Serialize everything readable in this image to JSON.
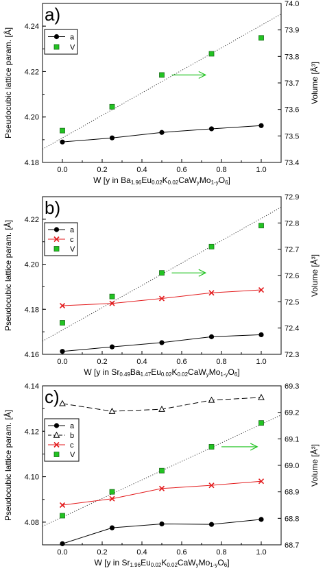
{
  "chart_data": [
    {
      "type": "scatter",
      "panel_label": "a)",
      "xlabel": "W [y in Ba",
      "xlabel_parts": [
        {
          "t": "W [y in Ba",
          "s": 0
        },
        {
          "t": "1.96",
          "s": 1
        },
        {
          "t": "Eu",
          "s": 0
        },
        {
          "t": "0.02",
          "s": 1
        },
        {
          "t": "K",
          "s": 0
        },
        {
          "t": "0.02",
          "s": 1
        },
        {
          "t": "CaW",
          "s": 0
        },
        {
          "t": "y",
          "s": 1
        },
        {
          "t": "Mo",
          "s": 0
        },
        {
          "t": "1-y",
          "s": 1
        },
        {
          "t": "O",
          "s": 0
        },
        {
          "t": "6",
          "s": 1
        },
        {
          "t": "]",
          "s": 0
        }
      ],
      "ylabel": "Pseudocubic lattice param. [Å]",
      "y2label": "Volume [Å³]",
      "xlim": [
        -0.1,
        1.1
      ],
      "xticks": [
        "0.0",
        "0.2",
        "0.4",
        "0.6",
        "0.8",
        "1.0"
      ],
      "ylim": [
        4.18,
        4.25
      ],
      "yticks": [
        "4.18",
        "4.20",
        "4.22",
        "4.24"
      ],
      "y2lim": [
        73.4,
        74.0
      ],
      "y2ticks": [
        "73.4",
        "73.5",
        "73.6",
        "73.7",
        "73.8",
        "73.9",
        "74.0"
      ],
      "legend_position": "top-left",
      "series": [
        {
          "name": "a",
          "marker": "circle",
          "line": "solid",
          "color": "#000000",
          "axis": "left",
          "x": [
            0,
            0.25,
            0.5,
            0.75,
            1.0
          ],
          "y": [
            4.189,
            4.1908,
            4.1932,
            4.1948,
            4.1962
          ]
        },
        {
          "name": "V",
          "marker": "square",
          "line": "none",
          "color": "#22c322",
          "axis": "right",
          "x": [
            0,
            0.25,
            0.5,
            0.75,
            1.0
          ],
          "y": [
            73.52,
            73.61,
            73.73,
            73.81,
            73.87
          ]
        }
      ],
      "fit_line": {
        "axis": "right",
        "x": [
          -0.1,
          1.1
        ],
        "y": [
          73.45,
          73.96
        ]
      },
      "arrow": {
        "x": [
          0.55,
          0.72
        ],
        "y": 73.73,
        "axis": "right",
        "color": "#22c322"
      }
    },
    {
      "type": "scatter",
      "panel_label": "b)",
      "xlabel": "W [y in Sr",
      "xlabel_parts": [
        {
          "t": "W [y in Sr",
          "s": 0
        },
        {
          "t": "0.49",
          "s": 1
        },
        {
          "t": "Ba",
          "s": 0
        },
        {
          "t": "1.47",
          "s": 1
        },
        {
          "t": "Eu",
          "s": 0
        },
        {
          "t": "0.02",
          "s": 1
        },
        {
          "t": "K",
          "s": 0
        },
        {
          "t": "0.02",
          "s": 1
        },
        {
          "t": "CaW",
          "s": 0
        },
        {
          "t": "y",
          "s": 1
        },
        {
          "t": "Mo",
          "s": 0
        },
        {
          "t": "1-y",
          "s": 1
        },
        {
          "t": "O",
          "s": 0
        },
        {
          "t": "6",
          "s": 1
        },
        {
          "t": "]",
          "s": 0
        }
      ],
      "ylabel": "Pseudocubic lattice param. [Å]",
      "y2label": "Volume [Å³]",
      "xlim": [
        -0.1,
        1.1
      ],
      "xticks": [
        "0.0",
        "0.2",
        "0.4",
        "0.6",
        "0.8",
        "1.0"
      ],
      "ylim": [
        4.16,
        4.23
      ],
      "yticks": [
        "4.16",
        "4.18",
        "4.20",
        "4.22"
      ],
      "y2lim": [
        72.3,
        72.9
      ],
      "y2ticks": [
        "72.3",
        "72.4",
        "72.5",
        "72.6",
        "72.7",
        "72.8",
        "72.9"
      ],
      "legend_position": "top-left",
      "series": [
        {
          "name": "a",
          "marker": "circle",
          "line": "solid",
          "color": "#000000",
          "axis": "left",
          "x": [
            0,
            0.25,
            0.5,
            0.75,
            1.0
          ],
          "y": [
            4.1613,
            4.1633,
            4.1652,
            4.1678,
            4.1687
          ]
        },
        {
          "name": "c",
          "marker": "cross",
          "line": "solid",
          "color": "#e31a1c",
          "axis": "left",
          "x": [
            0,
            0.25,
            0.5,
            0.75,
            1.0
          ],
          "y": [
            4.1816,
            4.1826,
            4.1848,
            4.1873,
            4.1886
          ]
        },
        {
          "name": "V",
          "marker": "square",
          "line": "none",
          "color": "#22c322",
          "axis": "right",
          "x": [
            0,
            0.25,
            0.5,
            0.75,
            1.0
          ],
          "y": [
            72.42,
            72.52,
            72.61,
            72.71,
            72.79
          ]
        }
      ],
      "fit_line": {
        "axis": "right",
        "x": [
          -0.1,
          1.1
        ],
        "y": [
          72.35,
          72.86
        ]
      },
      "arrow": {
        "x": [
          0.55,
          0.72
        ],
        "y": 72.61,
        "axis": "right",
        "color": "#22c322"
      }
    },
    {
      "type": "scatter",
      "panel_label": "c)",
      "xlabel": "W [y in Sr",
      "xlabel_parts": [
        {
          "t": "W [y in Sr",
          "s": 0
        },
        {
          "t": "1.96",
          "s": 1
        },
        {
          "t": "Eu",
          "s": 0
        },
        {
          "t": "0.02",
          "s": 1
        },
        {
          "t": "K",
          "s": 0
        },
        {
          "t": "0.02",
          "s": 1
        },
        {
          "t": "CaW",
          "s": 0
        },
        {
          "t": "y",
          "s": 1
        },
        {
          "t": "Mo",
          "s": 0
        },
        {
          "t": "1-y",
          "s": 1
        },
        {
          "t": "O",
          "s": 0
        },
        {
          "t": "6",
          "s": 1
        },
        {
          "t": "]",
          "s": 0
        }
      ],
      "ylabel": "Pseudocubic lattice param. [Å]",
      "y2label": "Volume [Å³]",
      "xlim": [
        -0.1,
        1.1
      ],
      "xticks": [
        "0.0",
        "0.2",
        "0.4",
        "0.6",
        "0.8",
        "1.0"
      ],
      "ylim": [
        4.07,
        4.14
      ],
      "yticks": [
        "4.08",
        "4.10",
        "4.12",
        "4.14"
      ],
      "y2lim": [
        68.7,
        69.3
      ],
      "y2ticks": [
        "68.7",
        "68.8",
        "68.9",
        "69.0",
        "69.1",
        "69.2",
        "69.3"
      ],
      "legend_position": "left",
      "series": [
        {
          "name": "a",
          "marker": "circle",
          "line": "solid",
          "color": "#000000",
          "axis": "left",
          "x": [
            0,
            0.25,
            0.5,
            0.75,
            1.0
          ],
          "y": [
            4.0705,
            4.0775,
            4.0792,
            4.079,
            4.0812
          ]
        },
        {
          "name": "b",
          "marker": "triangle",
          "line": "dashed",
          "color": "#000000",
          "axis": "left",
          "x": [
            0,
            0.25,
            0.5,
            0.75,
            1.0
          ],
          "y": [
            4.1322,
            4.1288,
            4.1297,
            4.1337,
            4.1349
          ]
        },
        {
          "name": "c",
          "marker": "cross",
          "line": "solid",
          "color": "#e31a1c",
          "axis": "left",
          "x": [
            0,
            0.25,
            0.5,
            0.75,
            1.0
          ],
          "y": [
            4.0875,
            4.0903,
            4.0948,
            4.0962,
            4.098
          ]
        },
        {
          "name": "V",
          "marker": "square",
          "line": "none",
          "color": "#22c322",
          "axis": "right",
          "x": [
            0,
            0.25,
            0.5,
            0.75,
            1.0
          ],
          "y": [
            68.81,
            68.9,
            68.98,
            69.07,
            69.16
          ]
        }
      ],
      "fit_line": {
        "axis": "right",
        "x": [
          -0.1,
          1.1
        ],
        "y": [
          68.77,
          69.19
        ]
      },
      "arrow": {
        "x": [
          0.8,
          0.98
        ],
        "y": 69.07,
        "axis": "right",
        "color": "#22c322"
      }
    }
  ]
}
